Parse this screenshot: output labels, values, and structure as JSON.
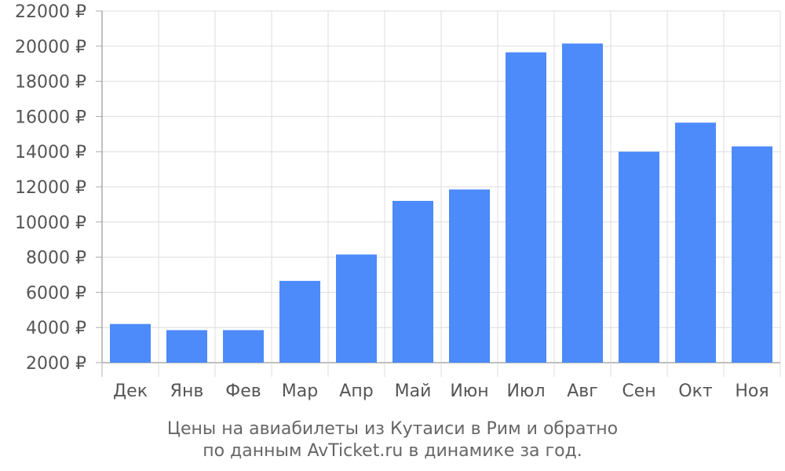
{
  "chart_data": {
    "type": "bar",
    "categories": [
      "Дек",
      "Янв",
      "Фев",
      "Мар",
      "Апр",
      "Май",
      "Июн",
      "Июл",
      "Авг",
      "Сен",
      "Окт",
      "Ноя"
    ],
    "series": [
      {
        "values": [
          4200,
          3850,
          3850,
          6650,
          8150,
          11200,
          11850,
          19650,
          20150,
          14000,
          15650,
          14300
        ]
      }
    ],
    "ylim": [
      2000,
      22000
    ],
    "yticks": [
      2000,
      4000,
      6000,
      8000,
      10000,
      12000,
      14000,
      16000,
      18000,
      20000,
      22000
    ],
    "ytick_labels": [
      "2000 ₽",
      "4000 ₽",
      "6000 ₽",
      "8000 ₽",
      "10000 ₽",
      "12000 ₽",
      "14000 ₽",
      "16000 ₽",
      "18000 ₽",
      "20000 ₽",
      "22000 ₽"
    ],
    "grid": true,
    "bar_color": "#4d8afa",
    "grid_color": "#dddddd",
    "axis_color": "#aaaaaa",
    "caption_line_1": "Цены на авиабилеты из Кутаиси в Рим и обратно",
    "caption_line_2": "по данным AvTicket.ru в динамике за год."
  }
}
